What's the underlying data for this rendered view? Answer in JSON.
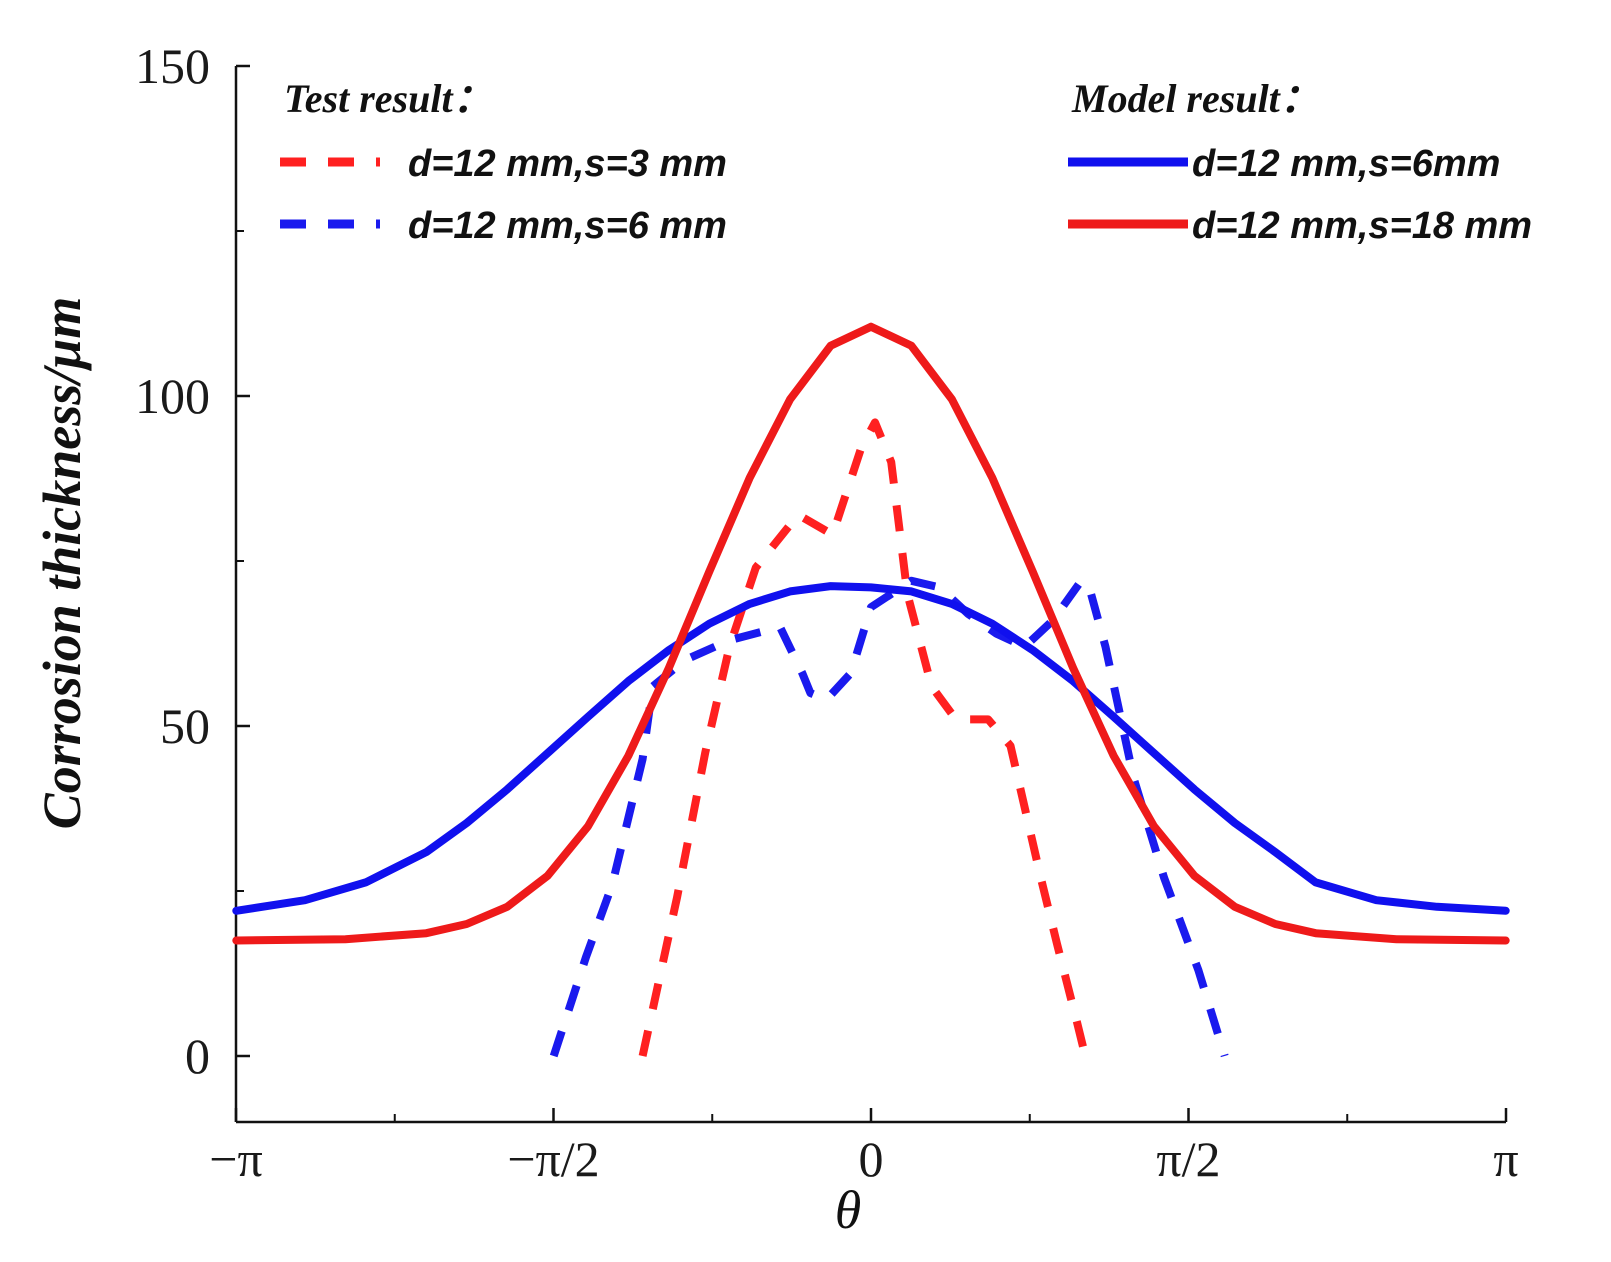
{
  "chart_data": {
    "type": "line",
    "xlabel": "θ",
    "ylabel": "Corrosion thickness/μm",
    "xlim": [
      -3.14159,
      3.14159
    ],
    "ylim": [
      -10,
      150
    ],
    "y_ticks": [
      0,
      50,
      100,
      150
    ],
    "y_tick_labels": [
      "0",
      "50",
      "100",
      "150"
    ],
    "x_ticks": [
      -3.14159,
      -1.5708,
      0,
      1.5708,
      3.14159
    ],
    "x_tick_labels": [
      "−π",
      "−π/2",
      "0",
      "π/2",
      "π"
    ],
    "legend": {
      "test_heading": "Test result：",
      "model_heading": "Model result："
    },
    "series": [
      {
        "name": "d=12 mm,s=3 mm",
        "group": "test",
        "color": "#ff2020",
        "dashed": true,
        "x": [
          -1.13,
          -0.96,
          -0.82,
          -0.7,
          -0.57,
          -0.36,
          -0.19,
          -0.05,
          0.02,
          0.1,
          0.18,
          0.3,
          0.42,
          0.58,
          0.69,
          0.78,
          0.84,
          0.92,
          1.02,
          1.06
        ],
        "y": [
          0,
          24,
          46,
          62,
          74,
          82,
          79,
          92,
          96,
          90,
          70,
          56,
          51,
          51,
          47,
          35,
          27,
          17,
          5,
          0
        ]
      },
      {
        "name": "d=12 mm,s=6 mm",
        "group": "test",
        "color": "#1a1aee",
        "dashed": true,
        "x": [
          -1.57,
          -1.41,
          -1.28,
          -1.13,
          -1.08,
          -0.92,
          -0.7,
          -0.45,
          -0.34,
          -0.3,
          -0.22,
          -0.1,
          0.0,
          0.1,
          0.2,
          0.34,
          0.48,
          0.62,
          0.76,
          0.9,
          1.04,
          1.08,
          1.16,
          1.3,
          1.45,
          1.62,
          1.75
        ],
        "y": [
          0,
          15,
          26,
          45,
          56,
          60,
          63,
          65,
          58,
          55,
          54,
          58,
          68,
          70,
          72,
          71,
          67,
          64,
          62,
          66,
          72,
          71,
          62,
          42,
          27,
          13,
          0
        ]
      },
      {
        "name": "d=12 mm,s=6mm",
        "group": "model",
        "color": "#1010ee",
        "dashed": false,
        "x": [
          -3.14,
          -2.8,
          -2.5,
          -2.2,
          -2.0,
          -1.8,
          -1.6,
          -1.4,
          -1.2,
          -1.0,
          -0.8,
          -0.6,
          -0.4,
          -0.2,
          0.0,
          0.2,
          0.4,
          0.6,
          0.8,
          1.0,
          1.2,
          1.4,
          1.6,
          1.8,
          2.0,
          2.2,
          2.5,
          2.8,
          3.14
        ],
        "y": [
          22.0,
          23.6,
          26.3,
          30.9,
          35.3,
          40.4,
          45.9,
          51.4,
          56.8,
          61.5,
          65.5,
          68.5,
          70.4,
          71.2,
          71.0,
          70.4,
          68.5,
          65.5,
          61.5,
          56.8,
          51.4,
          45.9,
          40.4,
          35.3,
          30.9,
          26.3,
          23.6,
          22.6,
          22.0
        ]
      },
      {
        "name": "d=12 mm,s=18 mm",
        "group": "model",
        "color": "#ee1a1a",
        "dashed": false,
        "x": [
          -3.14,
          -2.6,
          -2.2,
          -2.0,
          -1.8,
          -1.6,
          -1.4,
          -1.2,
          -1.0,
          -0.8,
          -0.6,
          -0.4,
          -0.2,
          0.0,
          0.2,
          0.4,
          0.6,
          0.8,
          1.0,
          1.2,
          1.4,
          1.6,
          1.8,
          2.0,
          2.2,
          2.6,
          3.14
        ],
        "y": [
          17.5,
          17.7,
          18.6,
          20.0,
          22.6,
          27.3,
          34.8,
          45.5,
          58.8,
          73.4,
          87.6,
          99.5,
          107.6,
          110.5,
          107.6,
          99.5,
          87.6,
          73.4,
          58.8,
          45.5,
          34.8,
          27.3,
          22.6,
          20.0,
          18.6,
          17.7,
          17.5
        ]
      }
    ]
  }
}
